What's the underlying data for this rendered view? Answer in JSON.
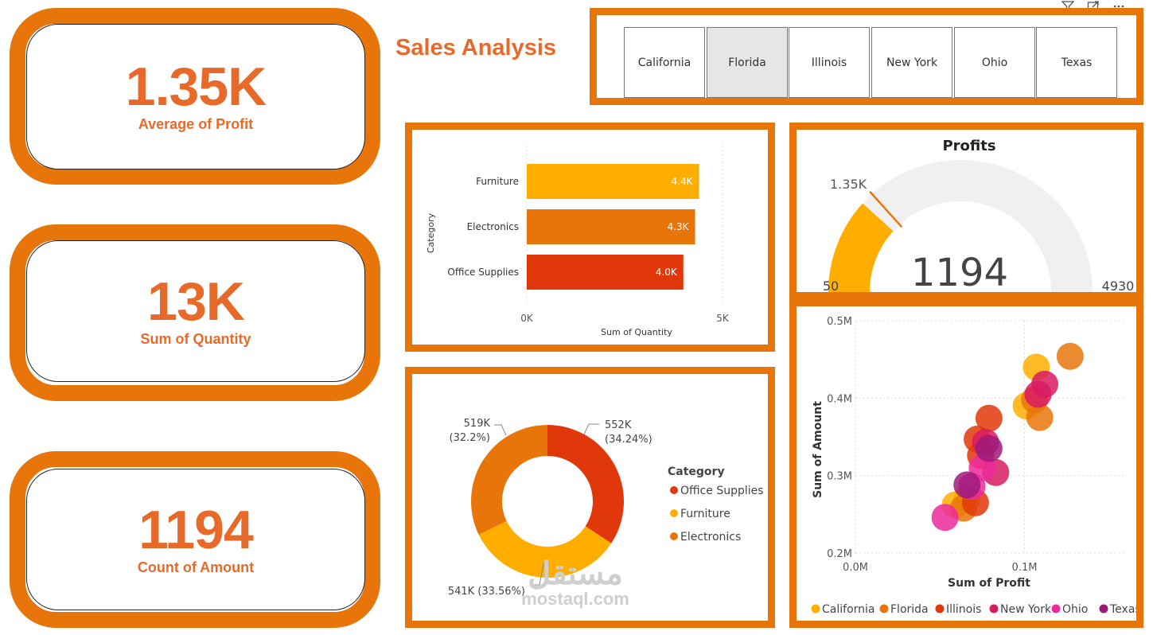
{
  "title": "Sales Analysis",
  "kpis": [
    {
      "value": "1.35K",
      "label": "Average of Profit"
    },
    {
      "value": "13K",
      "label": "Sum of Quantity"
    },
    {
      "value": "1194",
      "label": "Count of Amount"
    }
  ],
  "slicer": {
    "options": [
      "California",
      "Florida",
      "Illinois",
      "New York",
      "Ohio",
      "Texas"
    ],
    "selected": "Florida"
  },
  "visual_header_icons": [
    "filter-icon",
    "focus-mode-icon",
    "more-options-icon"
  ],
  "colors": {
    "accent": "#E8750A",
    "kpi_text": "#E86A2A",
    "furniture": "#FFAE00",
    "electronics": "#E8750A",
    "office_supplies": "#E0380A",
    "gauge_track": "#F0F0F0"
  },
  "bar_chart": {
    "ylabel": "Category",
    "xlabel": "Sum of Quantity",
    "x_ticks": [
      "0K",
      "5K"
    ]
  },
  "gauge": {
    "title": "Profits",
    "value_label": "1194",
    "min_label": "50",
    "max_label": "4930",
    "target_label": "1.35K"
  },
  "donut": {
    "legend_title": "Category",
    "legend": [
      "Office Supplies",
      "Furniture",
      "Electronics"
    ],
    "labels": [
      {
        "value": "552K",
        "pct": "(34.24%)"
      },
      {
        "value": "519K",
        "pct": "(32.2%)"
      },
      {
        "value": "541K (33.56%)",
        "pct": ""
      }
    ]
  },
  "scatter": {
    "xlabel": "Sum of Profit",
    "ylabel": "Sum of Amount",
    "x_ticks": [
      "0.0M",
      "0.1M"
    ],
    "y_ticks": [
      "0.5M",
      "0.4M",
      "0.3M",
      "0.2M"
    ],
    "legend": [
      "California",
      "Florida",
      "Illinois",
      "New York",
      "Ohio",
      "Texas"
    ]
  },
  "watermark": {
    "arabic": "مستقل",
    "latin": "mostaql.com"
  },
  "chart_data": [
    {
      "type": "bar",
      "orientation": "horizontal",
      "categories": [
        "Furniture",
        "Electronics",
        "Office Supplies"
      ],
      "values": [
        4400,
        4300,
        4000
      ],
      "data_labels": [
        "4.4K",
        "4.3K",
        "4.0K"
      ],
      "xlabel": "Sum of Quantity",
      "ylabel": "Category",
      "xlim": [
        0,
        5000
      ],
      "colors": [
        "#FFAE00",
        "#E8750A",
        "#E0380A"
      ]
    },
    {
      "type": "gauge",
      "title": "Profits",
      "value": 1194,
      "min": 50,
      "max": 4930,
      "target": 1350
    },
    {
      "type": "pie",
      "donut": true,
      "categories": [
        "Office Supplies",
        "Furniture",
        "Electronics"
      ],
      "values": [
        552000,
        541000,
        519000
      ],
      "percent": [
        34.24,
        33.56,
        32.2
      ],
      "colors": [
        "#E0380A",
        "#FFAE00",
        "#E8750A"
      ],
      "legend_title": "Category"
    },
    {
      "type": "scatter",
      "xlabel": "Sum of Profit",
      "ylabel": "Sum of Amount",
      "xlim": [
        0,
        0.16
      ],
      "ylim": [
        0.2,
        0.5
      ],
      "series": [
        {
          "name": "California",
          "color": "#FFAE00",
          "points": [
            [
              0.059,
              0.262
            ],
            [
              0.107,
              0.44
            ],
            [
              0.101,
              0.39
            ],
            [
              0.066,
              0.27
            ]
          ]
        },
        {
          "name": "Florida",
          "color": "#E8750A",
          "points": [
            [
              0.127,
              0.454
            ],
            [
              0.109,
              0.375
            ],
            [
              0.106,
              0.398
            ],
            [
              0.064,
              0.258
            ]
          ]
        },
        {
          "name": "Illinois",
          "color": "#E0380A",
          "points": [
            [
              0.079,
              0.374
            ],
            [
              0.072,
              0.347
            ],
            [
              0.074,
              0.326
            ],
            [
              0.071,
              0.265
            ]
          ]
        },
        {
          "name": "New York",
          "color": "#D81B60",
          "points": [
            [
              0.112,
              0.418
            ],
            [
              0.083,
              0.304
            ],
            [
              0.077,
              0.343
            ],
            [
              0.108,
              0.405
            ]
          ]
        },
        {
          "name": "Ohio",
          "color": "#EC2A9C",
          "points": [
            [
              0.053,
              0.246
            ],
            [
              0.075,
              0.31
            ],
            [
              0.069,
              0.286
            ]
          ]
        },
        {
          "name": "Texas",
          "color": "#9C1A7A",
          "points": [
            [
              0.066,
              0.288
            ],
            [
              0.079,
              0.335
            ]
          ]
        }
      ]
    }
  ]
}
